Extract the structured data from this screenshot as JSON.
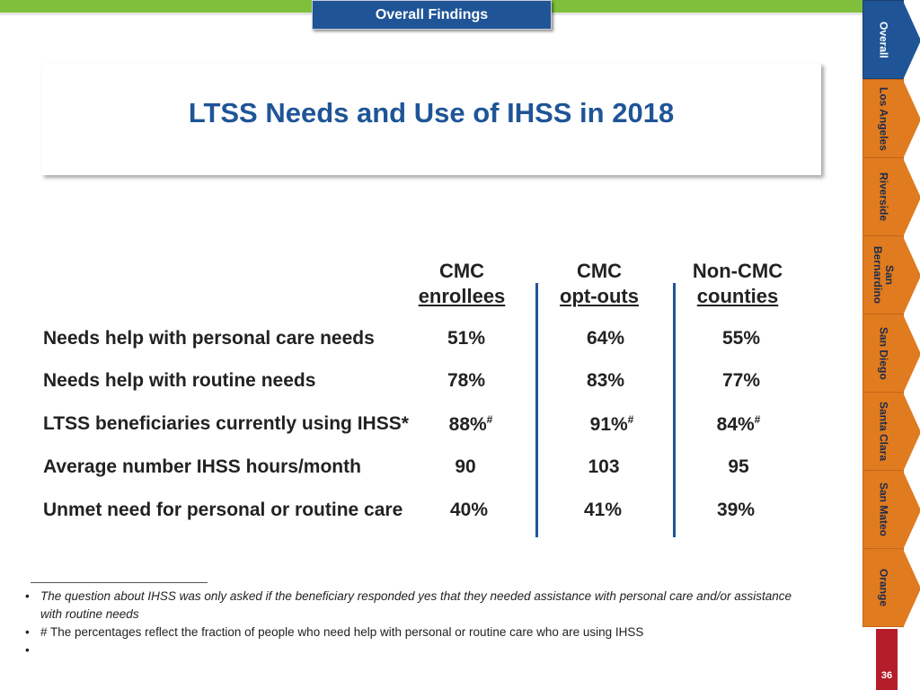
{
  "header": {
    "section_tab": "Overall Findings"
  },
  "title": "LTSS Needs and Use of IHSS in 2018",
  "table": {
    "columns": [
      {
        "line1": "CMC",
        "line2": "enrollees"
      },
      {
        "line1": "CMC",
        "line2": "opt-outs"
      },
      {
        "line1": "Non-CMC",
        "line2": "counties"
      }
    ],
    "rows": [
      {
        "label": "Needs help with personal care needs",
        "values": [
          "51%",
          "64%",
          "55%"
        ]
      },
      {
        "label": "Needs help with routine needs",
        "values": [
          "78%",
          "83%",
          "77%"
        ]
      },
      {
        "label": "LTSS beneficiaries currently using IHSS*",
        "values": [
          "88%",
          "91%",
          "84%"
        ],
        "mark": "#"
      },
      {
        "label": "Average number IHSS hours/month",
        "values": [
          "90",
          "103",
          "95"
        ]
      },
      {
        "label": "Unmet need for personal or routine care",
        "values": [
          "40%",
          "41%",
          "39%"
        ]
      }
    ]
  },
  "footnotes": {
    "bullet": "•",
    "items": [
      "The question about IHSS was only asked if the beneficiary responded yes that they needed assistance with personal care and/or assistance with routine needs",
      "# The percentages reflect the fraction of people who need help with personal or routine care who are using IHSS",
      ""
    ]
  },
  "nav": {
    "tabs": [
      "Overall",
      "Los Angeles",
      "Riverside",
      "San Bernardino",
      "San Diego",
      "Santa Clara",
      "San Mateo",
      "Orange"
    ],
    "active_index": 0
  },
  "page_number": "36",
  "colors": {
    "brand_blue": "#1f5597",
    "nav_orange": "#e07b1f",
    "top_green": "#7fbf3c",
    "page_red": "#b51d2a"
  }
}
